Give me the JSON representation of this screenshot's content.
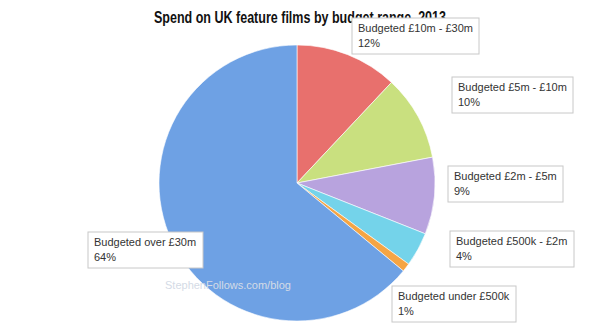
{
  "chart_data": {
    "type": "pie",
    "title": "Spend on UK feature films by budget range, 2013",
    "categories": [
      "Budgeted £10m - £30m",
      "Budgeted £5m - £10m",
      "Budgeted £2m - £5m",
      "Budgeted £500k - £2m",
      "Budgeted under £500k",
      "Budgeted over £30m"
    ],
    "values": [
      12,
      10,
      9,
      4,
      1,
      64
    ],
    "value_labels": [
      "12%",
      "10%",
      "9%",
      "4%",
      "1%",
      "64%"
    ],
    "colors": [
      "#e8706d",
      "#c9e07f",
      "#b8a3de",
      "#74d3ea",
      "#f5a544",
      "#6ea1e4"
    ],
    "data_labels": true,
    "annotations": [
      "StephenFollows.com/blog"
    ]
  }
}
